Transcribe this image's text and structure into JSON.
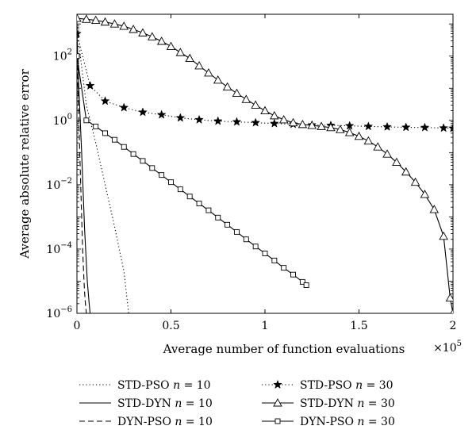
{
  "chart_data": {
    "type": "line",
    "title": "",
    "xlabel": "Average number of function evaluations",
    "ylabel": "Average absolute relative error",
    "x_multiplier_label": {
      "base": "×10",
      "exp": "5"
    },
    "x_scale": "linear",
    "y_scale": "log",
    "xlim": [
      0,
      200000
    ],
    "ylim": [
      1e-06,
      2000
    ],
    "x_ticks": [
      {
        "value": 0,
        "label": "0"
      },
      {
        "value": 50000,
        "label": "0.5"
      },
      {
        "value": 100000,
        "label": "1"
      },
      {
        "value": 150000,
        "label": "1.5"
      },
      {
        "value": 200000,
        "label": "2"
      }
    ],
    "y_ticks": [
      {
        "value": 100,
        "base": "10",
        "exp": "2"
      },
      {
        "value": 1,
        "base": "10",
        "exp": "0"
      },
      {
        "value": 0.01,
        "base": "10",
        "exp": "−2"
      },
      {
        "value": 0.0001,
        "base": "10",
        "exp": "−4"
      },
      {
        "value": 1e-06,
        "base": "10",
        "exp": "−6"
      }
    ],
    "grid": false,
    "legend_position": "bottom",
    "series": [
      {
        "name": "STD-PSO n = 10",
        "name_base": "STD-PSO",
        "name_var": "n",
        "name_val": " = 10",
        "style": "dotted",
        "marker": "none",
        "x": [
          0,
          2000,
          5000,
          10000,
          15000,
          20000,
          25000,
          27500
        ],
        "y": [
          1000,
          80,
          3,
          0.2,
          0.01,
          0.0005,
          2e-05,
          1e-06
        ]
      },
      {
        "name": "STD-DYN n = 10",
        "name_base": "STD-DYN",
        "name_var": "n",
        "name_val": " = 10",
        "style": "solid",
        "marker": "none",
        "x": [
          0,
          1000,
          2500,
          4000,
          5500,
          6500,
          7000
        ],
        "y": [
          500,
          10,
          0.1,
          0.0005,
          1e-05,
          2e-06,
          1e-06
        ]
      },
      {
        "name": "DYN-PSO n = 10",
        "name_base": "DYN-PSO",
        "name_var": "n",
        "name_val": " = 10",
        "style": "dashed",
        "marker": "none",
        "x": [
          0,
          1000,
          2000,
          3000,
          4000,
          4500,
          5000
        ],
        "y": [
          100,
          1,
          0.01,
          0.0001,
          5e-06,
          2e-06,
          1e-06
        ]
      },
      {
        "name": "STD-PSO n = 30",
        "name_base": "STD-PSO",
        "name_var": "n",
        "name_val": " = 30",
        "style": "dashdot",
        "marker": "star",
        "x": [
          0,
          7000,
          15000,
          25000,
          35000,
          45000,
          55000,
          65000,
          75000,
          85000,
          95000,
          105000,
          115000,
          125000,
          135000,
          145000,
          155000,
          165000,
          175000,
          185000,
          195000,
          200000
        ],
        "y": [
          500,
          12,
          4,
          2.5,
          1.8,
          1.5,
          1.2,
          1.05,
          0.95,
          0.9,
          0.85,
          0.8,
          0.76,
          0.72,
          0.7,
          0.68,
          0.65,
          0.63,
          0.61,
          0.6,
          0.58,
          0.57
        ],
        "marker_every": 1
      },
      {
        "name": "STD-DYN n = 30",
        "name_base": "STD-DYN",
        "name_var": "n",
        "name_val": " = 30",
        "style": "solid",
        "marker": "triangle",
        "x": [
          0,
          5000,
          10000,
          15000,
          20000,
          25000,
          30000,
          35000,
          40000,
          45000,
          50000,
          55000,
          60000,
          65000,
          70000,
          75000,
          80000,
          85000,
          90000,
          95000,
          100000,
          105000,
          110000,
          115000,
          120000,
          125000,
          130000,
          135000,
          140000,
          145000,
          150000,
          155000,
          160000,
          165000,
          170000,
          175000,
          180000,
          185000,
          190000,
          195000,
          198500,
          200000
        ],
        "y": [
          1500,
          1400,
          1300,
          1150,
          1000,
          850,
          680,
          530,
          400,
          290,
          200,
          130,
          85,
          50,
          30,
          18,
          11,
          7,
          4.5,
          3,
          2,
          1.4,
          1.05,
          0.85,
          0.75,
          0.7,
          0.65,
          0.6,
          0.52,
          0.42,
          0.32,
          0.23,
          0.15,
          0.09,
          0.05,
          0.025,
          0.012,
          0.005,
          0.0017,
          0.00025,
          3e-06,
          1e-06
        ]
      },
      {
        "name": "DYN-PSO n = 30",
        "name_base": "DYN-PSO",
        "name_var": "n",
        "name_val": " = 30",
        "style": "dashed-solid",
        "marker": "square",
        "x": [
          0,
          5000,
          10000,
          15000,
          20000,
          25000,
          30000,
          35000,
          40000,
          45000,
          50000,
          55000,
          60000,
          65000,
          70000,
          75000,
          80000,
          85000,
          90000,
          95000,
          100000,
          105000,
          110000,
          115000,
          120000,
          122000
        ],
        "y": [
          100,
          1.0,
          0.65,
          0.4,
          0.25,
          0.15,
          0.09,
          0.055,
          0.033,
          0.02,
          0.012,
          0.0072,
          0.0043,
          0.0026,
          0.0016,
          0.00095,
          0.00057,
          0.00034,
          0.0002,
          0.00012,
          7.3e-05,
          4.4e-05,
          2.6e-05,
          1.6e-05,
          9.5e-06,
          7.5e-06
        ]
      }
    ]
  }
}
